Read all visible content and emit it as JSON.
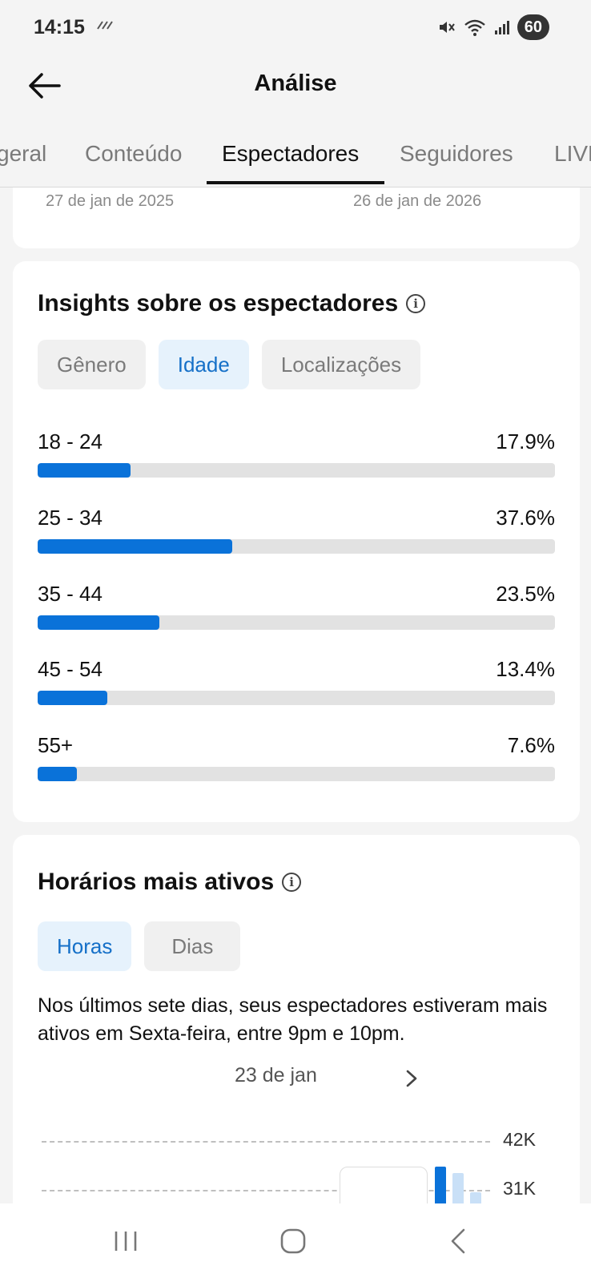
{
  "status_bar": {
    "time": "14:15",
    "battery": "60"
  },
  "header": {
    "title": "Análise"
  },
  "tabs": [
    {
      "label": "geral"
    },
    {
      "label": "Conteúdo"
    },
    {
      "label": "Espectadores",
      "active": true
    },
    {
      "label": "Seguidores"
    },
    {
      "label": "LIVE"
    }
  ],
  "date_range": {
    "start": "27 de jan de 2025",
    "end": "26 de jan de 2026"
  },
  "insights": {
    "title": "Insights sobre os espectadores",
    "chips": [
      {
        "label": "Gênero",
        "active": false
      },
      {
        "label": "Idade",
        "active": true
      },
      {
        "label": "Localizações",
        "active": false
      }
    ],
    "ages": [
      {
        "label": "18 - 24",
        "percent_text": "17.9%",
        "fraction": 0.179
      },
      {
        "label": "25 - 34",
        "percent_text": "37.6%",
        "fraction": 0.376
      },
      {
        "label": "35 - 44",
        "percent_text": "23.5%",
        "fraction": 0.235
      },
      {
        "label": "45 - 54",
        "percent_text": "13.4%",
        "fraction": 0.134
      },
      {
        "label": "55+",
        "percent_text": "7.6%",
        "fraction": 0.076
      }
    ]
  },
  "active_hours": {
    "title": "Horários mais ativos",
    "chips": [
      {
        "label": "Horas",
        "active": true
      },
      {
        "label": "Dias",
        "active": false
      }
    ],
    "summary": "Nos últimos sete dias, seus espectadores estiveram mais ativos em Sexta-feira, entre 9pm e 10pm.",
    "date_label": "23 de jan",
    "y_ticks": [
      "42K",
      "31K"
    ]
  },
  "colors": {
    "accent": "#0a72d9",
    "chip_active_bg": "#e6f2fc",
    "chip_active_text": "#1570c8",
    "bar_track": "#e2e2e2",
    "bar_light": "#c9e0f7"
  },
  "icons": {
    "back": "arrow-left-icon",
    "info": "info-icon",
    "next": "chevron-right-icon",
    "nav_recent": "recent-apps-icon",
    "nav_home": "home-icon",
    "nav_back": "back-icon"
  }
}
